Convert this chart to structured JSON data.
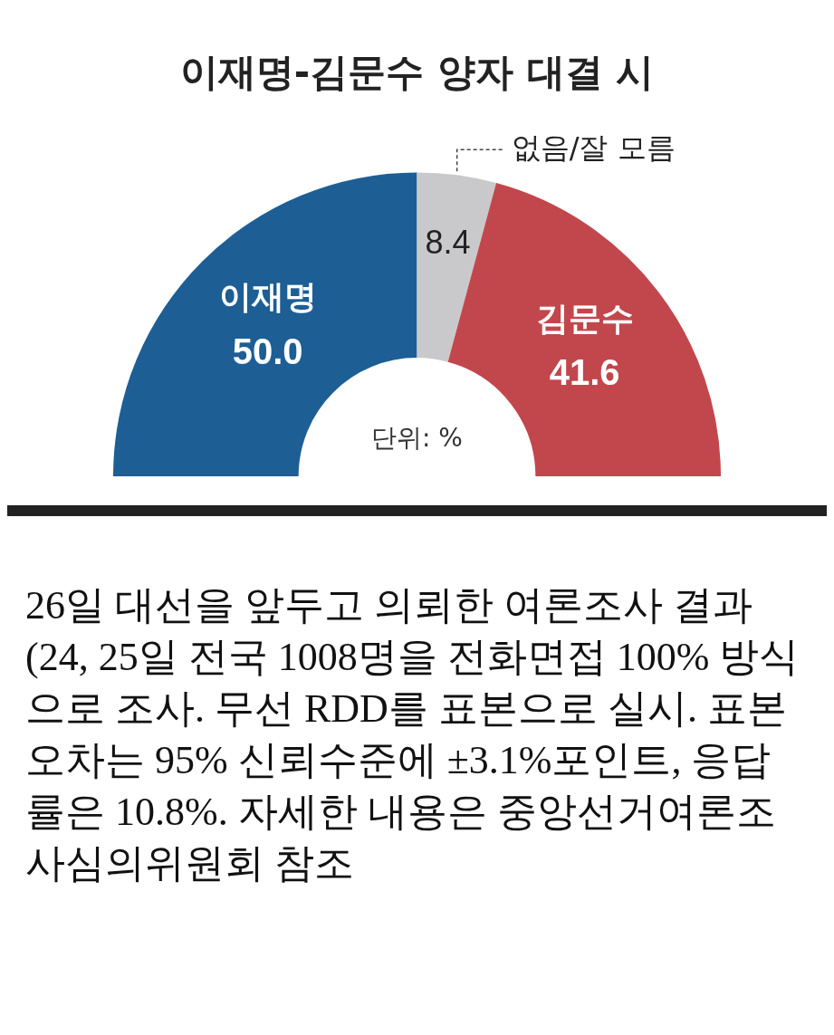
{
  "chart_data": {
    "type": "donut",
    "title": "이재명-김문수 양자 대결 시",
    "categories": [
      "이재명",
      "없음/잘 모름",
      "김문수"
    ],
    "values": [
      50.0,
      8.4,
      41.6
    ],
    "value_labels": [
      "50.0",
      "8.4",
      "41.6"
    ],
    "colors": [
      "#1d5e95",
      "#c9c9cb",
      "#c2474c"
    ],
    "legend": false,
    "annotations": [
      "단위: %",
      "26일 대선을 앞두고 의뢰한 여론조사 결과(24, 25일 전국 1008명을 전화면접 100% 방식으로 조사. 무선 RDD를 표본으로 실시. 표본오차는 95% 신뢰수준에 ±3.1%포인트, 응답률은 10.8%. 자세한 내용은 중앙선거여론조사심의위원회 참조"
    ]
  }
}
